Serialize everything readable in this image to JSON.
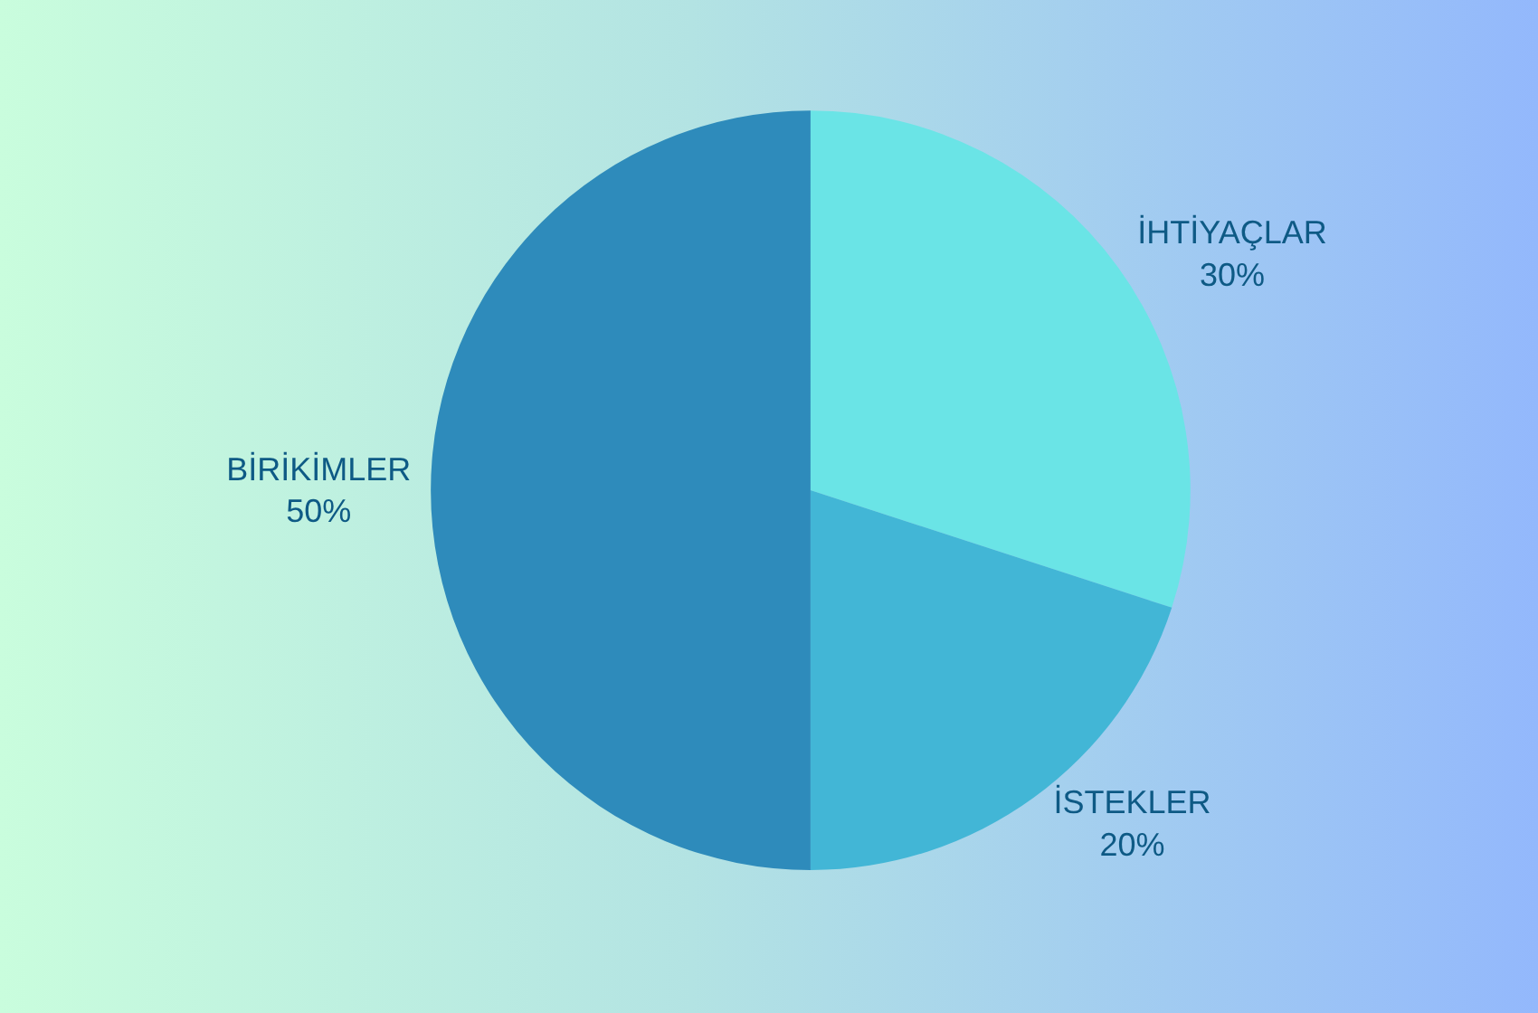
{
  "chart_data": {
    "type": "pie",
    "categories": [
      "İHTİYAÇLAR",
      "İSTEKLER",
      "BİRİKİMLER"
    ],
    "values": [
      30,
      20,
      50
    ],
    "value_labels": [
      "30%",
      "20%",
      "50%"
    ],
    "colors": [
      "#6ae4e6",
      "#42b6d6",
      "#2e8bbb"
    ],
    "legend": false
  }
}
